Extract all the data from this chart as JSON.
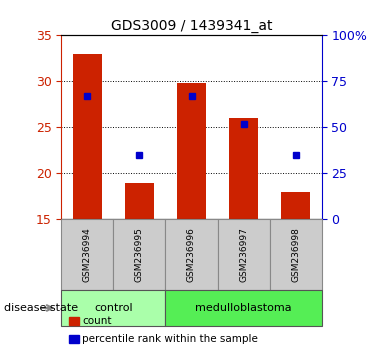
{
  "title": "GDS3009 / 1439341_at",
  "samples": [
    "GSM236994",
    "GSM236995",
    "GSM236996",
    "GSM236997",
    "GSM236998"
  ],
  "bar_values": [
    33.0,
    19.0,
    29.8,
    26.0,
    18.0
  ],
  "percentile_values": [
    67,
    35,
    67,
    52,
    35
  ],
  "bar_color": "#cc2200",
  "dot_color": "#0000cc",
  "ylim_left": [
    15,
    35
  ],
  "ylim_right": [
    0,
    100
  ],
  "yticks_left": [
    15,
    20,
    25,
    30,
    35
  ],
  "yticks_right": [
    0,
    25,
    50,
    75,
    100
  ],
  "ytick_labels_right": [
    "0",
    "25",
    "50",
    "75",
    "100%"
  ],
  "grid_values": [
    20,
    25,
    30
  ],
  "disease_groups": [
    {
      "label": "control",
      "indices": [
        0,
        1
      ],
      "color": "#aaffaa"
    },
    {
      "label": "medulloblastoma",
      "indices": [
        2,
        3,
        4
      ],
      "color": "#55ee55"
    }
  ],
  "disease_state_label": "disease state",
  "legend_items": [
    {
      "label": "count",
      "color": "#cc2200"
    },
    {
      "label": "percentile rank within the sample",
      "color": "#0000cc"
    }
  ],
  "bar_bottom": 15,
  "bar_width": 0.55,
  "background_color": "#ffffff",
  "tick_label_color_left": "#cc2200",
  "tick_label_color_right": "#0000cc",
  "label_box_color": "#cccccc",
  "label_box_edge": "#888888"
}
